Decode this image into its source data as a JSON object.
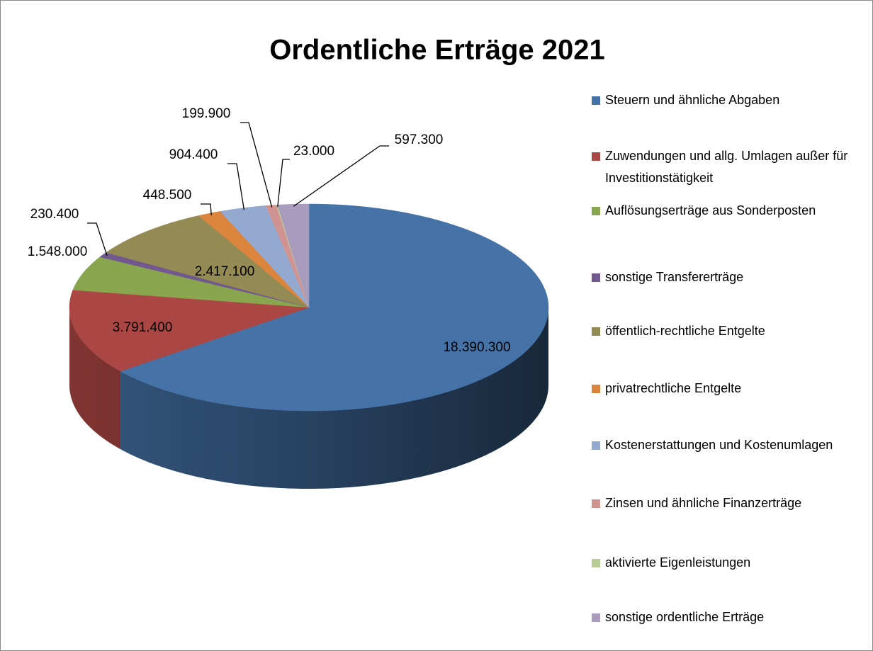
{
  "chart_data": {
    "type": "pie3d",
    "title": "Ordentliche Erträge 2021",
    "categories": [
      "Steuern und ähnliche Abgaben",
      "Zuwendungen und allg. Umlagen außer für Investitionstätigkeit",
      "Auflösungserträge aus Sonderposten",
      "sonstige Transfererträge",
      "öffentlich-rechtliche Entgelte",
      "privatrechtliche Entgelte",
      "Kostenerstattungen und Kostenumlagen",
      "Zinsen und ähnliche Finanzerträge",
      "aktivierte Eigenleistungen",
      "sonstige ordentliche Erträge"
    ],
    "values": [
      18390300,
      3791400,
      1548000,
      230400,
      2417100,
      448500,
      904400,
      199900,
      23000,
      597300
    ],
    "value_labels": [
      "18.390.300",
      "3.791.400",
      "1.548.000",
      "230.400",
      "2.417.100",
      "448.500",
      "904.400",
      "199.900",
      "23.000",
      "597.300"
    ],
    "colors": [
      "#4572a7",
      "#aa4643",
      "#89a54e",
      "#71588f",
      "#948a54",
      "#db843d",
      "#93a9cf",
      "#d19392",
      "#b9cd96",
      "#a99bbd"
    ],
    "legend": "right"
  }
}
